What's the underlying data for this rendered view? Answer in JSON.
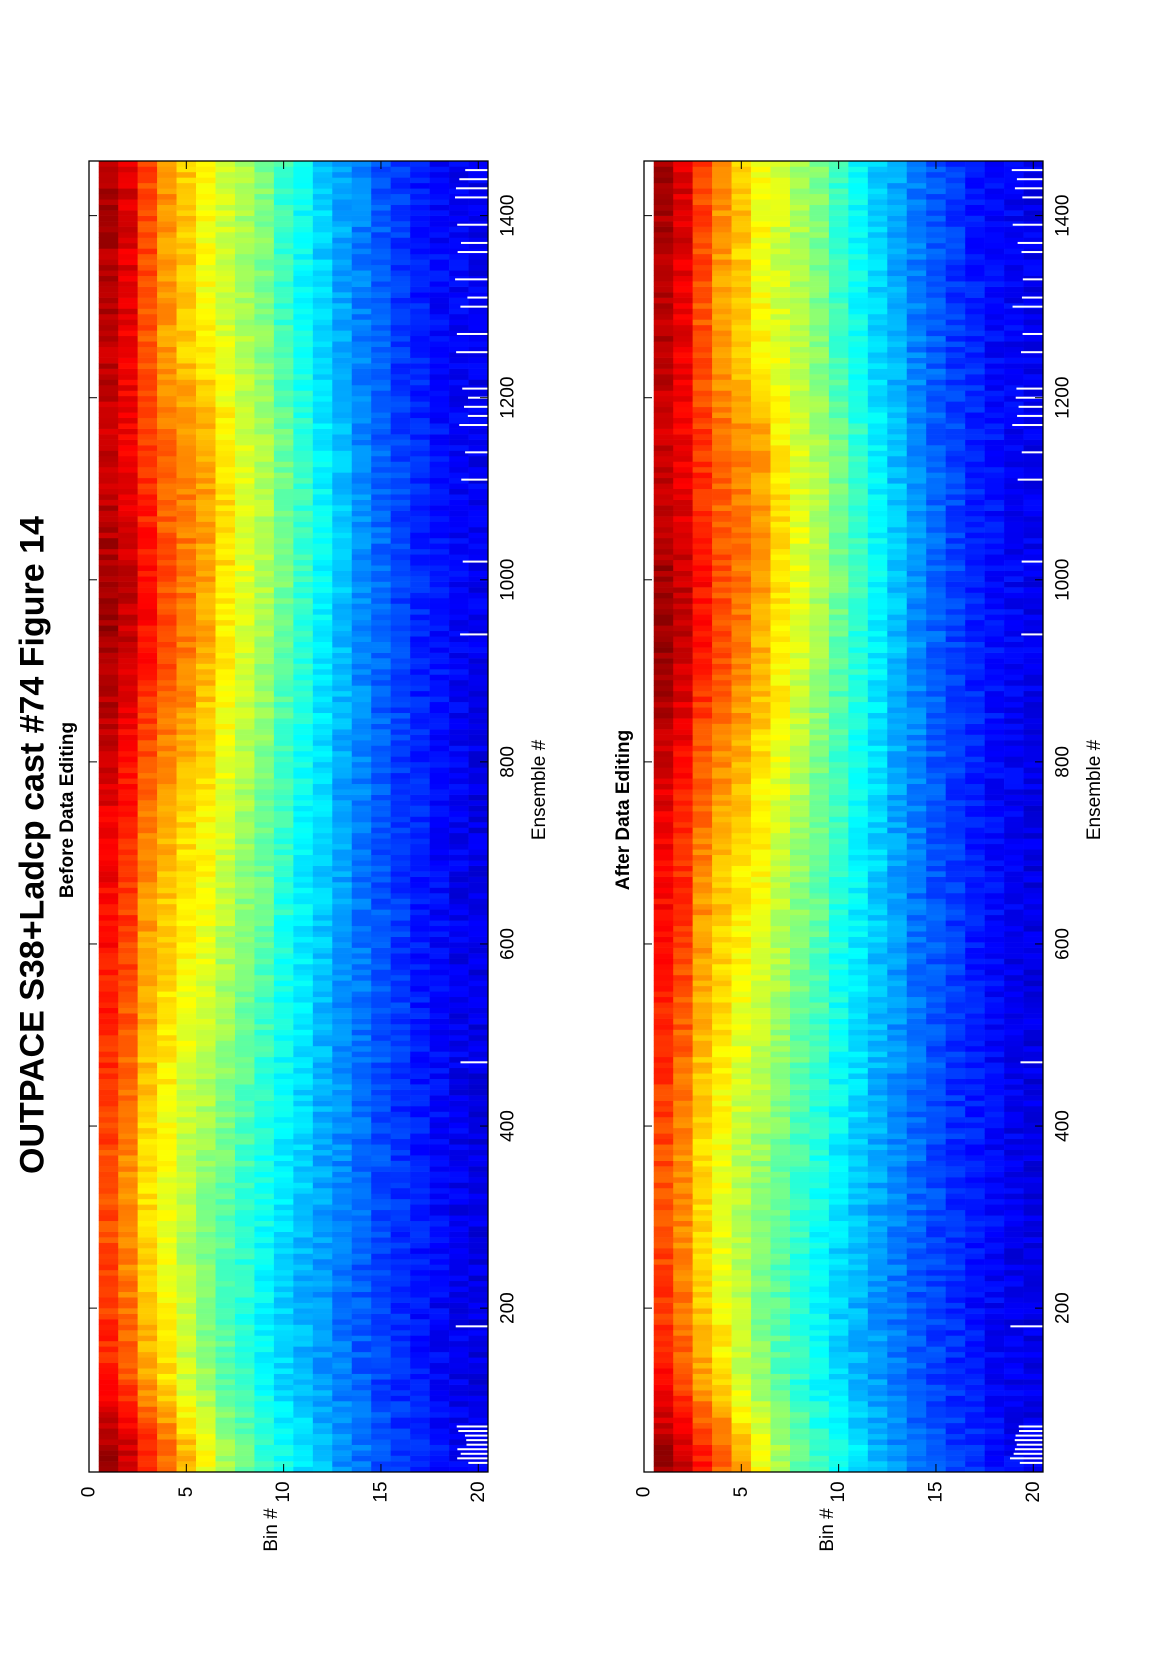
{
  "figure": {
    "title": "OUTPACE S38+Ladcp cast #74  Figure 14"
  },
  "colormap": "jet",
  "chart_data": [
    {
      "type": "heatmap",
      "title": "Before Data Editing",
      "xlabel": "Ensemble #",
      "ylabel": "Bin #",
      "xlim": [
        20,
        1460
      ],
      "ylim": [
        0,
        20.5
      ],
      "y_reversed": true,
      "xticks": [
        200,
        400,
        600,
        800,
        1000,
        1200,
        1400
      ],
      "yticks": [
        0,
        5,
        10,
        15,
        20
      ],
      "xtick_labels": [
        "200",
        "400",
        "600",
        "800",
        "1000",
        "1200",
        "1400"
      ],
      "ytick_labels": [
        "0",
        "5",
        "10",
        "15",
        "20"
      ],
      "value_scale": "relative intensity 0 (dark blue) to 1 (dark red)",
      "bins": [
        1,
        2,
        3,
        4,
        5,
        6,
        7,
        8,
        9,
        10,
        11,
        12,
        13,
        14,
        15,
        16,
        17,
        18,
        19,
        20
      ],
      "ensembles": [
        40,
        120,
        200,
        280,
        360,
        440,
        520,
        600,
        680,
        760,
        840,
        920,
        1000,
        1080,
        1160,
        1240,
        1320,
        1400,
        1450
      ],
      "values": [
        [
          0.97,
          0.86,
          0.82,
          0.8,
          0.8,
          0.82,
          0.84,
          0.86,
          0.88,
          0.9,
          0.94,
          0.97,
          0.97,
          0.94,
          0.92,
          0.94,
          0.95,
          0.96,
          0.96
        ],
        [
          0.93,
          0.8,
          0.76,
          0.74,
          0.74,
          0.76,
          0.79,
          0.81,
          0.83,
          0.85,
          0.89,
          0.93,
          0.93,
          0.9,
          0.88,
          0.89,
          0.9,
          0.91,
          0.91
        ],
        [
          0.85,
          0.72,
          0.68,
          0.66,
          0.66,
          0.68,
          0.7,
          0.72,
          0.74,
          0.77,
          0.81,
          0.86,
          0.86,
          0.84,
          0.82,
          0.79,
          0.8,
          0.81,
          0.81
        ],
        [
          0.78,
          0.66,
          0.62,
          0.6,
          0.61,
          0.63,
          0.65,
          0.67,
          0.69,
          0.72,
          0.76,
          0.8,
          0.8,
          0.78,
          0.77,
          0.72,
          0.72,
          0.73,
          0.73
        ],
        [
          0.7,
          0.58,
          0.56,
          0.55,
          0.56,
          0.58,
          0.61,
          0.63,
          0.65,
          0.68,
          0.72,
          0.76,
          0.76,
          0.75,
          0.74,
          0.68,
          0.67,
          0.68,
          0.68
        ],
        [
          0.62,
          0.52,
          0.5,
          0.5,
          0.52,
          0.55,
          0.58,
          0.6,
          0.62,
          0.64,
          0.67,
          0.7,
          0.72,
          0.72,
          0.71,
          0.64,
          0.62,
          0.62,
          0.62
        ],
        [
          0.54,
          0.46,
          0.46,
          0.46,
          0.48,
          0.51,
          0.53,
          0.55,
          0.57,
          0.59,
          0.62,
          0.64,
          0.66,
          0.66,
          0.64,
          0.6,
          0.58,
          0.58,
          0.58
        ],
        [
          0.48,
          0.42,
          0.41,
          0.42,
          0.44,
          0.46,
          0.48,
          0.5,
          0.52,
          0.54,
          0.56,
          0.58,
          0.6,
          0.6,
          0.58,
          0.55,
          0.54,
          0.54,
          0.54
        ],
        [
          0.43,
          0.38,
          0.37,
          0.38,
          0.4,
          0.42,
          0.44,
          0.46,
          0.48,
          0.49,
          0.51,
          0.53,
          0.55,
          0.55,
          0.54,
          0.51,
          0.5,
          0.5,
          0.5
        ],
        [
          0.39,
          0.34,
          0.33,
          0.34,
          0.36,
          0.38,
          0.39,
          0.4,
          0.42,
          0.43,
          0.45,
          0.47,
          0.49,
          0.49,
          0.48,
          0.44,
          0.43,
          0.43,
          0.43
        ],
        [
          0.35,
          0.31,
          0.3,
          0.31,
          0.33,
          0.34,
          0.35,
          0.36,
          0.37,
          0.38,
          0.4,
          0.41,
          0.43,
          0.43,
          0.42,
          0.39,
          0.38,
          0.38,
          0.38
        ],
        [
          0.31,
          0.28,
          0.27,
          0.28,
          0.29,
          0.3,
          0.31,
          0.32,
          0.33,
          0.34,
          0.35,
          0.36,
          0.37,
          0.37,
          0.36,
          0.34,
          0.33,
          0.33,
          0.33
        ],
        [
          0.27,
          0.25,
          0.24,
          0.25,
          0.26,
          0.27,
          0.27,
          0.28,
          0.28,
          0.29,
          0.3,
          0.31,
          0.32,
          0.32,
          0.31,
          0.3,
          0.29,
          0.29,
          0.29
        ],
        [
          0.24,
          0.22,
          0.21,
          0.22,
          0.23,
          0.23,
          0.24,
          0.24,
          0.24,
          0.25,
          0.26,
          0.26,
          0.27,
          0.27,
          0.26,
          0.25,
          0.25,
          0.25,
          0.25
        ],
        [
          0.21,
          0.19,
          0.19,
          0.19,
          0.2,
          0.2,
          0.21,
          0.21,
          0.21,
          0.21,
          0.22,
          0.22,
          0.23,
          0.23,
          0.22,
          0.22,
          0.21,
          0.21,
          0.21
        ],
        [
          0.18,
          0.17,
          0.16,
          0.17,
          0.17,
          0.17,
          0.18,
          0.18,
          0.18,
          0.18,
          0.19,
          0.19,
          0.19,
          0.19,
          0.19,
          0.18,
          0.18,
          0.18,
          0.18
        ],
        [
          0.16,
          0.15,
          0.14,
          0.15,
          0.15,
          0.15,
          0.15,
          0.15,
          0.15,
          0.16,
          0.16,
          0.16,
          0.16,
          0.16,
          0.16,
          0.16,
          0.15,
          0.15,
          0.15
        ],
        [
          0.14,
          0.13,
          0.12,
          0.13,
          0.13,
          0.13,
          0.13,
          0.13,
          0.13,
          0.13,
          0.14,
          0.14,
          0.14,
          0.14,
          0.14,
          0.13,
          0.13,
          0.13,
          0.13
        ],
        [
          0.12,
          0.11,
          0.11,
          0.11,
          0.11,
          0.11,
          0.11,
          0.11,
          0.11,
          0.12,
          0.12,
          0.12,
          0.12,
          0.12,
          0.12,
          0.12,
          0.12,
          0.12,
          0.12
        ],
        [
          0.11,
          0.1,
          0.1,
          0.1,
          0.1,
          0.1,
          0.1,
          0.1,
          0.1,
          0.1,
          0.11,
          0.11,
          0.11,
          0.11,
          0.11,
          0.11,
          0.11,
          0.11,
          0.11
        ]
      ],
      "missing_data_ensembles": [
        30,
        35,
        40,
        45,
        50,
        55,
        60,
        65,
        70,
        180,
        470,
        940,
        1020,
        1110,
        1140,
        1170,
        1180,
        1190,
        1200,
        1210,
        1250,
        1270,
        1300,
        1310,
        1330,
        1360,
        1370,
        1390,
        1420,
        1430,
        1440,
        1450
      ]
    },
    {
      "type": "heatmap",
      "title": "After Data Editing",
      "xlabel": "Ensemble #",
      "ylabel": "Bin #",
      "xlim": [
        20,
        1460
      ],
      "ylim": [
        0,
        20.5
      ],
      "y_reversed": true,
      "xticks": [
        200,
        400,
        600,
        800,
        1000,
        1200,
        1400
      ],
      "yticks": [
        0,
        5,
        10,
        15,
        20
      ],
      "xtick_labels": [
        "200",
        "400",
        "600",
        "800",
        "1000",
        "1200",
        "1400"
      ],
      "ytick_labels": [
        "0",
        "5",
        "10",
        "15",
        "20"
      ],
      "value_scale": "relative intensity 0 (dark blue) to 1 (dark red)",
      "bins": [
        1,
        2,
        3,
        4,
        5,
        6,
        7,
        8,
        9,
        10,
        11,
        12,
        13,
        14,
        15,
        16,
        17,
        18,
        19,
        20
      ],
      "ensembles": [
        40,
        120,
        200,
        280,
        360,
        440,
        520,
        600,
        680,
        760,
        840,
        920,
        1000,
        1080,
        1160,
        1240,
        1320,
        1400,
        1450
      ],
      "values": [
        [
          0.97,
          0.86,
          0.82,
          0.8,
          0.8,
          0.82,
          0.84,
          0.86,
          0.88,
          0.9,
          0.94,
          0.97,
          0.97,
          0.94,
          0.92,
          0.94,
          0.95,
          0.96,
          0.96
        ],
        [
          0.93,
          0.8,
          0.76,
          0.74,
          0.74,
          0.76,
          0.79,
          0.81,
          0.83,
          0.85,
          0.89,
          0.93,
          0.93,
          0.9,
          0.88,
          0.89,
          0.9,
          0.91,
          0.91
        ],
        [
          0.85,
          0.72,
          0.68,
          0.66,
          0.66,
          0.68,
          0.7,
          0.72,
          0.74,
          0.77,
          0.81,
          0.86,
          0.86,
          0.84,
          0.82,
          0.79,
          0.8,
          0.81,
          0.81
        ],
        [
          0.78,
          0.66,
          0.62,
          0.6,
          0.61,
          0.63,
          0.65,
          0.67,
          0.69,
          0.72,
          0.76,
          0.8,
          0.8,
          0.78,
          0.77,
          0.72,
          0.72,
          0.73,
          0.73
        ],
        [
          0.7,
          0.58,
          0.56,
          0.55,
          0.56,
          0.58,
          0.61,
          0.63,
          0.65,
          0.68,
          0.72,
          0.76,
          0.76,
          0.75,
          0.74,
          0.68,
          0.67,
          0.68,
          0.68
        ],
        [
          0.62,
          0.52,
          0.5,
          0.5,
          0.52,
          0.55,
          0.58,
          0.6,
          0.62,
          0.64,
          0.67,
          0.7,
          0.72,
          0.72,
          0.71,
          0.64,
          0.62,
          0.62,
          0.62
        ],
        [
          0.54,
          0.46,
          0.46,
          0.46,
          0.48,
          0.51,
          0.53,
          0.55,
          0.57,
          0.59,
          0.62,
          0.64,
          0.66,
          0.66,
          0.64,
          0.6,
          0.58,
          0.58,
          0.58
        ],
        [
          0.48,
          0.42,
          0.41,
          0.42,
          0.44,
          0.46,
          0.48,
          0.5,
          0.52,
          0.54,
          0.56,
          0.58,
          0.6,
          0.6,
          0.58,
          0.55,
          0.54,
          0.54,
          0.54
        ],
        [
          0.43,
          0.38,
          0.37,
          0.38,
          0.4,
          0.42,
          0.44,
          0.46,
          0.48,
          0.49,
          0.51,
          0.53,
          0.55,
          0.55,
          0.54,
          0.51,
          0.5,
          0.5,
          0.5
        ],
        [
          0.39,
          0.34,
          0.33,
          0.34,
          0.36,
          0.38,
          0.39,
          0.4,
          0.42,
          0.43,
          0.45,
          0.47,
          0.49,
          0.49,
          0.48,
          0.44,
          0.43,
          0.43,
          0.43
        ],
        [
          0.35,
          0.31,
          0.3,
          0.31,
          0.33,
          0.34,
          0.35,
          0.36,
          0.37,
          0.38,
          0.4,
          0.41,
          0.43,
          0.43,
          0.42,
          0.39,
          0.38,
          0.38,
          0.38
        ],
        [
          0.31,
          0.28,
          0.27,
          0.28,
          0.29,
          0.3,
          0.31,
          0.32,
          0.33,
          0.34,
          0.35,
          0.36,
          0.37,
          0.37,
          0.36,
          0.34,
          0.33,
          0.33,
          0.33
        ],
        [
          0.27,
          0.25,
          0.24,
          0.25,
          0.26,
          0.27,
          0.27,
          0.28,
          0.28,
          0.29,
          0.3,
          0.31,
          0.32,
          0.32,
          0.31,
          0.3,
          0.29,
          0.29,
          0.29
        ],
        [
          0.24,
          0.22,
          0.21,
          0.22,
          0.23,
          0.23,
          0.24,
          0.24,
          0.24,
          0.25,
          0.26,
          0.26,
          0.27,
          0.27,
          0.26,
          0.25,
          0.25,
          0.25,
          0.25
        ],
        [
          0.21,
          0.19,
          0.19,
          0.19,
          0.2,
          0.2,
          0.21,
          0.21,
          0.21,
          0.21,
          0.22,
          0.22,
          0.23,
          0.23,
          0.22,
          0.22,
          0.21,
          0.21,
          0.21
        ],
        [
          0.18,
          0.17,
          0.16,
          0.17,
          0.17,
          0.17,
          0.18,
          0.18,
          0.18,
          0.18,
          0.19,
          0.19,
          0.19,
          0.19,
          0.19,
          0.18,
          0.18,
          0.18,
          0.18
        ],
        [
          0.16,
          0.15,
          0.14,
          0.15,
          0.15,
          0.15,
          0.15,
          0.15,
          0.15,
          0.16,
          0.16,
          0.16,
          0.16,
          0.16,
          0.16,
          0.16,
          0.15,
          0.15,
          0.15
        ],
        [
          0.14,
          0.13,
          0.12,
          0.13,
          0.13,
          0.13,
          0.13,
          0.13,
          0.13,
          0.13,
          0.14,
          0.14,
          0.14,
          0.14,
          0.14,
          0.13,
          0.13,
          0.13,
          0.13
        ],
        [
          0.12,
          0.11,
          0.11,
          0.11,
          0.11,
          0.11,
          0.11,
          0.11,
          0.11,
          0.12,
          0.12,
          0.12,
          0.12,
          0.12,
          0.12,
          0.12,
          0.12,
          0.12,
          0.12
        ],
        [
          0.11,
          0.1,
          0.1,
          0.1,
          0.1,
          0.1,
          0.1,
          0.1,
          0.1,
          0.1,
          0.11,
          0.11,
          0.11,
          0.11,
          0.11,
          0.11,
          0.11,
          0.11,
          0.11
        ]
      ],
      "missing_data_ensembles": [
        30,
        35,
        40,
        45,
        50,
        55,
        60,
        65,
        70,
        180,
        470,
        940,
        1020,
        1110,
        1140,
        1170,
        1180,
        1190,
        1200,
        1210,
        1250,
        1270,
        1300,
        1310,
        1330,
        1360,
        1370,
        1390,
        1420,
        1430,
        1440,
        1450
      ]
    }
  ]
}
